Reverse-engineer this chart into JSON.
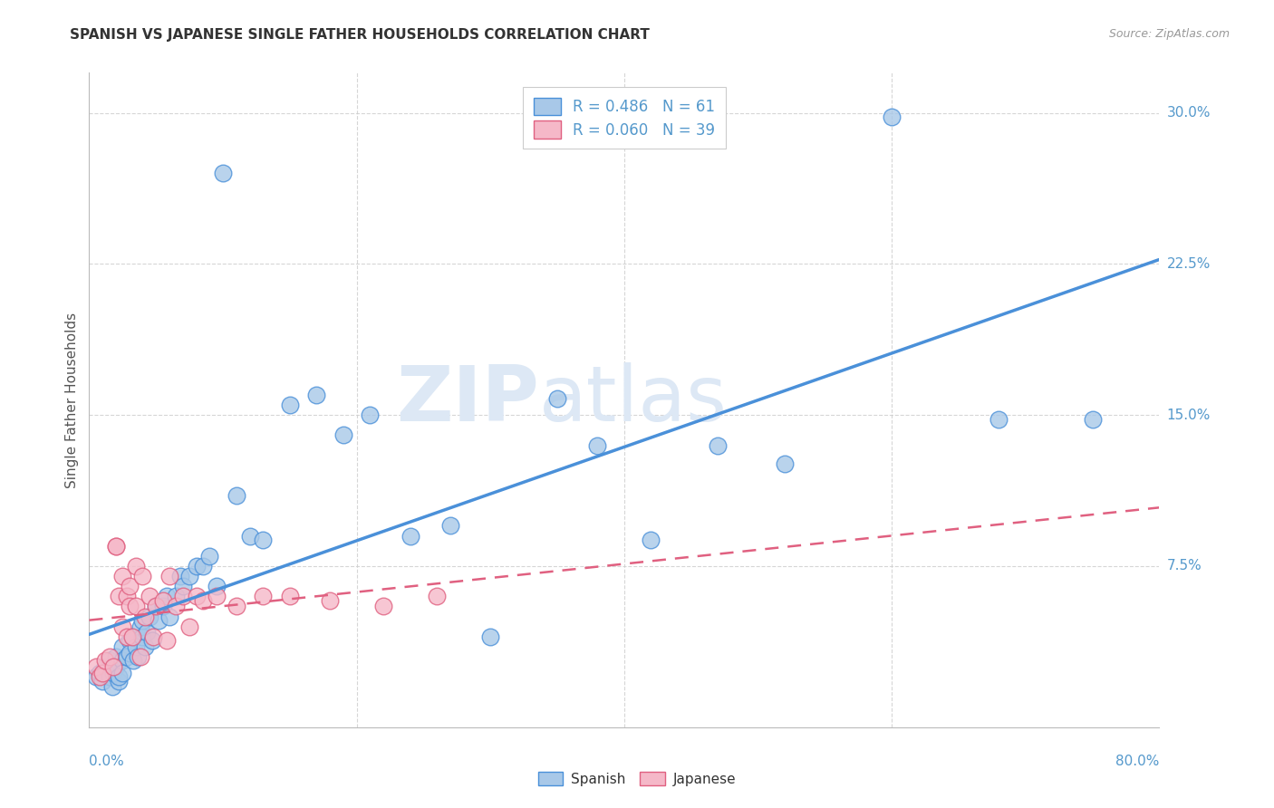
{
  "title": "SPANISH VS JAPANESE SINGLE FATHER HOUSEHOLDS CORRELATION CHART",
  "source": "Source: ZipAtlas.com",
  "ylabel": "Single Father Households",
  "xlim": [
    0.0,
    0.8
  ],
  "ylim": [
    -0.005,
    0.32
  ],
  "spanish_R": 0.486,
  "spanish_N": 61,
  "japanese_R": 0.06,
  "japanese_N": 39,
  "spanish_color": "#a8c8e8",
  "japanese_color": "#f5b8c8",
  "spanish_line_color": "#4a90d9",
  "japanese_line_color": "#e06080",
  "background_color": "#ffffff",
  "grid_color": "#cccccc",
  "watermark_zip": "ZIP",
  "watermark_atlas": "atlas",
  "ytick_values": [
    0.075,
    0.15,
    0.225,
    0.3
  ],
  "ytick_labels": [
    "7.5%",
    "15.0%",
    "22.5%",
    "30.0%"
  ],
  "xtick_values": [
    0.0,
    0.2,
    0.4,
    0.6,
    0.8
  ],
  "xtick_labels": [
    "0.0%",
    "",
    "",
    "",
    "80.0%"
  ],
  "spanish_x": [
    0.005,
    0.008,
    0.01,
    0.012,
    0.015,
    0.015,
    0.017,
    0.018,
    0.02,
    0.02,
    0.022,
    0.022,
    0.025,
    0.025,
    0.025,
    0.028,
    0.03,
    0.03,
    0.032,
    0.033,
    0.035,
    0.036,
    0.038,
    0.04,
    0.04,
    0.042,
    0.043,
    0.045,
    0.047,
    0.05,
    0.052,
    0.055,
    0.058,
    0.06,
    0.065,
    0.068,
    0.07,
    0.075,
    0.08,
    0.085,
    0.09,
    0.095,
    0.1,
    0.11,
    0.12,
    0.13,
    0.15,
    0.17,
    0.19,
    0.21,
    0.24,
    0.27,
    0.3,
    0.35,
    0.38,
    0.42,
    0.47,
    0.52,
    0.6,
    0.68,
    0.75
  ],
  "spanish_y": [
    0.02,
    0.022,
    0.018,
    0.025,
    0.02,
    0.028,
    0.015,
    0.022,
    0.03,
    0.025,
    0.018,
    0.02,
    0.035,
    0.028,
    0.022,
    0.03,
    0.038,
    0.032,
    0.04,
    0.028,
    0.035,
    0.03,
    0.045,
    0.04,
    0.048,
    0.035,
    0.042,
    0.05,
    0.038,
    0.055,
    0.048,
    0.055,
    0.06,
    0.05,
    0.06,
    0.07,
    0.065,
    0.07,
    0.075,
    0.075,
    0.08,
    0.065,
    0.27,
    0.11,
    0.09,
    0.088,
    0.155,
    0.16,
    0.14,
    0.15,
    0.09,
    0.095,
    0.04,
    0.158,
    0.135,
    0.088,
    0.135,
    0.126,
    0.298,
    0.148,
    0.148
  ],
  "japanese_x": [
    0.005,
    0.008,
    0.01,
    0.012,
    0.015,
    0.018,
    0.02,
    0.02,
    0.022,
    0.025,
    0.025,
    0.028,
    0.028,
    0.03,
    0.03,
    0.032,
    0.035,
    0.035,
    0.038,
    0.04,
    0.042,
    0.045,
    0.048,
    0.05,
    0.055,
    0.058,
    0.06,
    0.065,
    0.07,
    0.075,
    0.08,
    0.085,
    0.095,
    0.11,
    0.13,
    0.15,
    0.18,
    0.22,
    0.26
  ],
  "japanese_y": [
    0.025,
    0.02,
    0.022,
    0.028,
    0.03,
    0.025,
    0.085,
    0.085,
    0.06,
    0.07,
    0.045,
    0.06,
    0.04,
    0.065,
    0.055,
    0.04,
    0.075,
    0.055,
    0.03,
    0.07,
    0.05,
    0.06,
    0.04,
    0.055,
    0.058,
    0.038,
    0.07,
    0.055,
    0.06,
    0.045,
    0.06,
    0.058,
    0.06,
    0.055,
    0.06,
    0.06,
    0.058,
    0.055,
    0.06
  ]
}
